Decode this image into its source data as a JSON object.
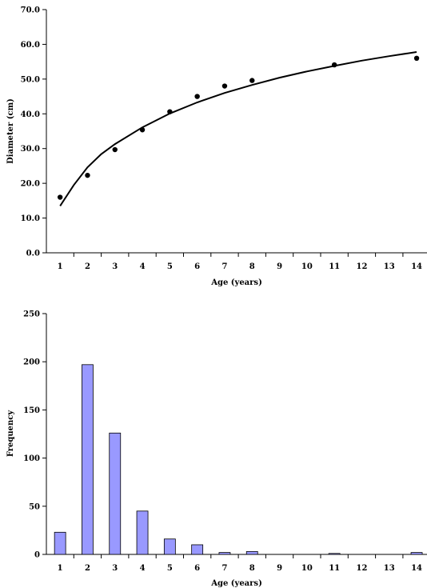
{
  "chart_data": [
    {
      "type": "scatter",
      "xlabel": "Age (years)",
      "ylabel": "Diameter (cm)",
      "categories": [
        "1",
        "2",
        "3",
        "4",
        "5",
        "6",
        "7",
        "8",
        "9",
        "10",
        "11",
        "12",
        "13",
        "14"
      ],
      "ylim": [
        0,
        70
      ],
      "yticks": [
        "0.0",
        "10.0",
        "20.0",
        "30.0",
        "40.0",
        "50.0",
        "60.0",
        "70.0"
      ],
      "grid": false,
      "series": [
        {
          "kind": "points",
          "color": "#000000",
          "points": [
            {
              "x": 1,
              "y": 16.0
            },
            {
              "x": 2,
              "y": 22.3
            },
            {
              "x": 3,
              "y": 29.7
            },
            {
              "x": 4,
              "y": 35.4
            },
            {
              "x": 5,
              "y": 40.6
            },
            {
              "x": 6,
              "y": 45.0
            },
            {
              "x": 7,
              "y": 48.0
            },
            {
              "x": 8,
              "y": 49.6
            },
            {
              "x": 11,
              "y": 54.1
            },
            {
              "x": 14,
              "y": 56.0
            }
          ]
        },
        {
          "kind": "fitted-curve",
          "color": "#000000",
          "points": [
            {
              "x": 1,
              "y": 13.5
            },
            {
              "x": 1.5,
              "y": 19.5
            },
            {
              "x": 2,
              "y": 24.6
            },
            {
              "x": 2.5,
              "y": 28.4
            },
            {
              "x": 3,
              "y": 31.3
            },
            {
              "x": 4,
              "y": 36.1
            },
            {
              "x": 5,
              "y": 40.1
            },
            {
              "x": 6,
              "y": 43.3
            },
            {
              "x": 7,
              "y": 46.0
            },
            {
              "x": 8,
              "y": 48.3
            },
            {
              "x": 9,
              "y": 50.4
            },
            {
              "x": 10,
              "y": 52.2
            },
            {
              "x": 11,
              "y": 53.8
            },
            {
              "x": 12,
              "y": 55.3
            },
            {
              "x": 13,
              "y": 56.6
            },
            {
              "x": 14,
              "y": 57.8
            }
          ]
        }
      ]
    },
    {
      "type": "bar",
      "xlabel": "Age (years)",
      "ylabel": "Frequency",
      "categories": [
        "1",
        "2",
        "3",
        "4",
        "5",
        "6",
        "7",
        "8",
        "9",
        "10",
        "11",
        "12",
        "13",
        "14"
      ],
      "values": [
        23,
        197,
        126,
        45,
        16,
        10,
        2,
        3,
        0,
        0,
        1,
        0,
        0,
        2
      ],
      "ylim": [
        0,
        250
      ],
      "yticks": [
        "0",
        "50",
        "100",
        "150",
        "200",
        "250"
      ],
      "grid": false,
      "bar_color": "#9999ff"
    }
  ]
}
